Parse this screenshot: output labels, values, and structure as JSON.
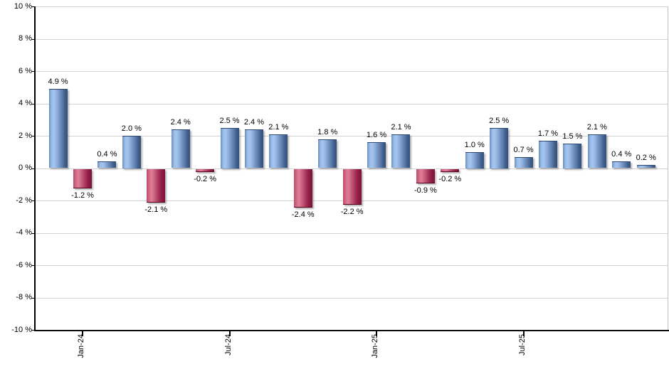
{
  "chart_data": {
    "type": "bar",
    "title": "",
    "xlabel": "",
    "ylabel": "",
    "unit": "%",
    "ylim": [
      -10,
      10
    ],
    "grid": true,
    "legend": false,
    "y_ticks": [
      {
        "value": 10,
        "label": "10 %"
      },
      {
        "value": 8,
        "label": "8 %"
      },
      {
        "value": 6,
        "label": "6 %"
      },
      {
        "value": 4,
        "label": "4 %"
      },
      {
        "value": 2,
        "label": "2 %"
      },
      {
        "value": 0,
        "label": "0 %"
      },
      {
        "value": -2,
        "label": "-2 %"
      },
      {
        "value": -4,
        "label": "-4 %"
      },
      {
        "value": -6,
        "label": "-6 %"
      },
      {
        "value": -8,
        "label": "-8 %"
      },
      {
        "value": -10,
        "label": "-10 %"
      }
    ],
    "x_ticks": [
      {
        "bar_index": 1,
        "label": "Jan-24"
      },
      {
        "bar_index": 7,
        "label": "Jul-24"
      },
      {
        "bar_index": 13,
        "label": "Jan-25"
      },
      {
        "bar_index": 19,
        "label": "Jul-25"
      }
    ],
    "bars": [
      {
        "value": 4.9,
        "label": "4.9 %"
      },
      {
        "value": -1.2,
        "label": "-1.2 %"
      },
      {
        "value": 0.4,
        "label": "0.4 %"
      },
      {
        "value": 2.0,
        "label": "2.0 %"
      },
      {
        "value": -2.1,
        "label": "-2.1 %"
      },
      {
        "value": 2.4,
        "label": "2.4 %"
      },
      {
        "value": -0.2,
        "label": "-0.2 %"
      },
      {
        "value": 2.5,
        "label": "2.5 %"
      },
      {
        "value": 2.4,
        "label": "2.4 %"
      },
      {
        "value": 2.1,
        "label": "2.1 %"
      },
      {
        "value": -2.4,
        "label": "-2.4 %"
      },
      {
        "value": 1.8,
        "label": "1.8 %"
      },
      {
        "value": -2.2,
        "label": "-2.2 %"
      },
      {
        "value": 1.6,
        "label": "1.6 %"
      },
      {
        "value": 2.1,
        "label": "2.1 %"
      },
      {
        "value": -0.9,
        "label": "-0.9 %"
      },
      {
        "value": -0.2,
        "label": "-0.2 %"
      },
      {
        "value": 1.0,
        "label": "1.0 %"
      },
      {
        "value": 2.5,
        "label": "2.5 %"
      },
      {
        "value": 0.7,
        "label": "0.7 %"
      },
      {
        "value": 1.7,
        "label": "1.7 %"
      },
      {
        "value": 1.5,
        "label": "1.5 %"
      },
      {
        "value": 2.1,
        "label": "2.1 %"
      },
      {
        "value": 0.4,
        "label": "0.4 %"
      },
      {
        "value": 0.2,
        "label": "0.2 %"
      }
    ],
    "colors": {
      "positive_bar": "#6b8dbf",
      "negative_bar": "#b03a5e",
      "gridline": "#d2d2d2",
      "axis": "#000000"
    }
  }
}
